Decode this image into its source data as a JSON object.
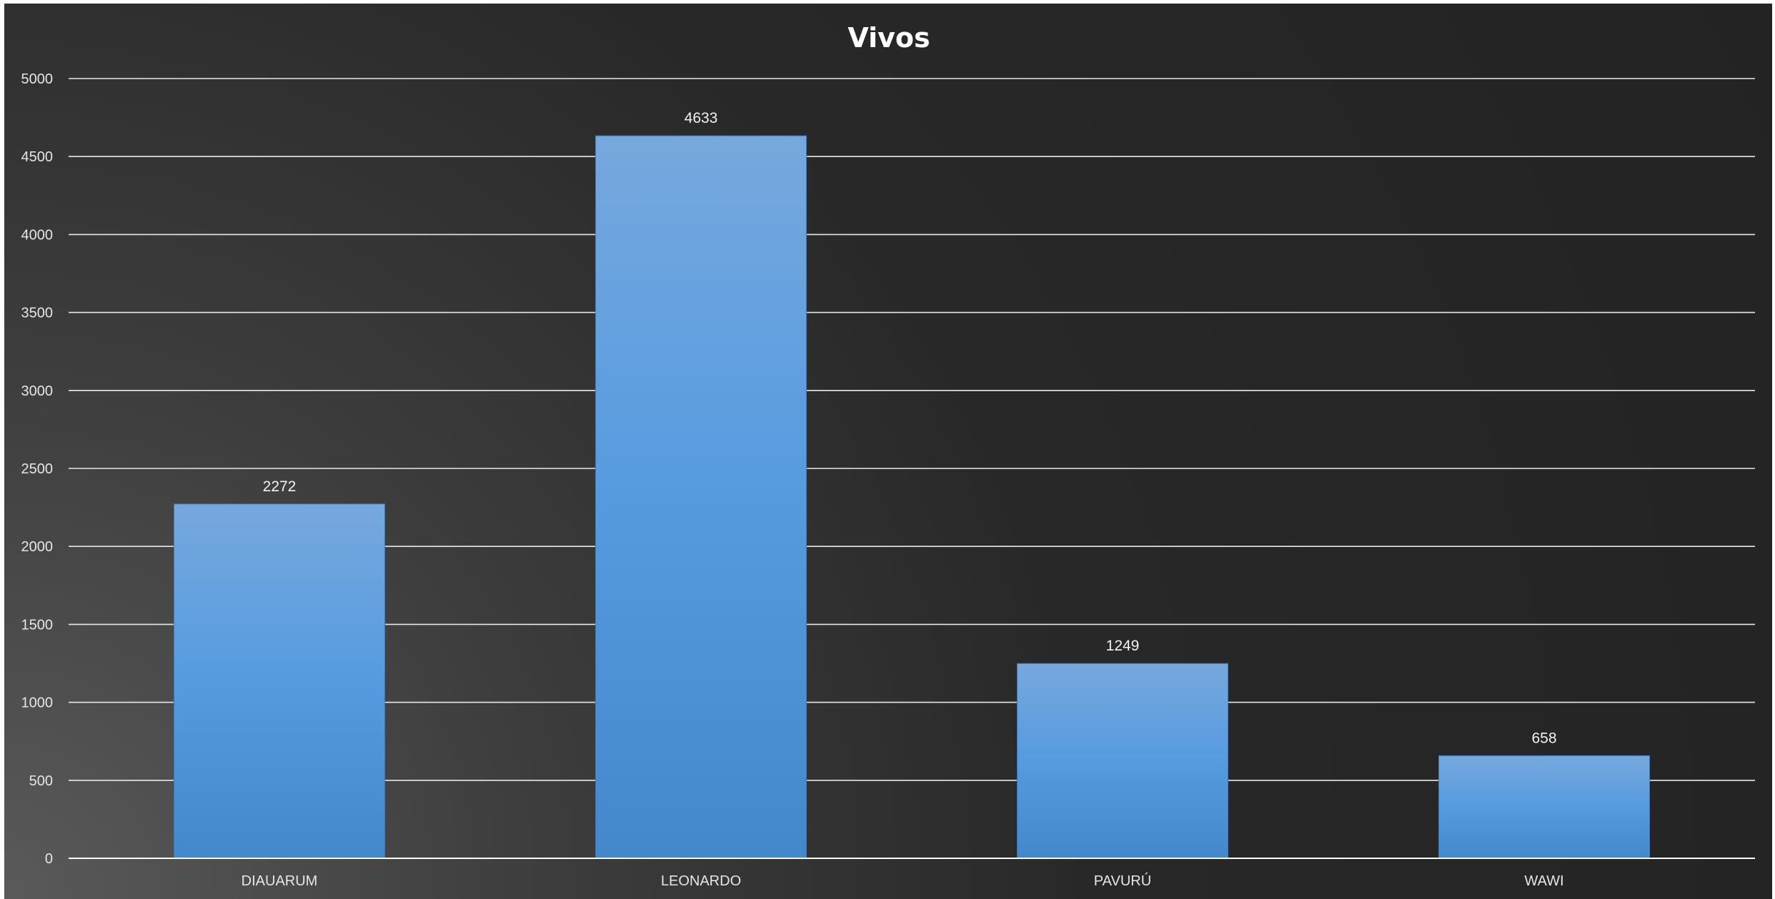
{
  "chart_data": {
    "type": "bar",
    "title": "Vivos",
    "categories": [
      "DIAUARUM",
      "LEONARDO",
      "PAVURÚ",
      "WAWI"
    ],
    "values": [
      2272,
      4633,
      1249,
      658
    ],
    "data_labels": [
      "2272",
      "4633",
      "1249",
      "658"
    ],
    "ylim": [
      0,
      5000
    ],
    "yticks": [
      0,
      500,
      1000,
      1500,
      2000,
      2500,
      3000,
      3500,
      4000,
      4500,
      5000
    ],
    "ytick_labels": [
      "0",
      "500",
      "1000",
      "1500",
      "2000",
      "2500",
      "3000",
      "3500",
      "4000",
      "4500",
      "5000"
    ],
    "xlabel": "",
    "ylabel": "",
    "grid": true,
    "legend": "none",
    "colors": {
      "bar_top": "#77a8dd",
      "bar_mid": "#559be0",
      "bar_bottom": "#4488cc",
      "background": "#262626",
      "text": "#e6e6e6"
    }
  }
}
